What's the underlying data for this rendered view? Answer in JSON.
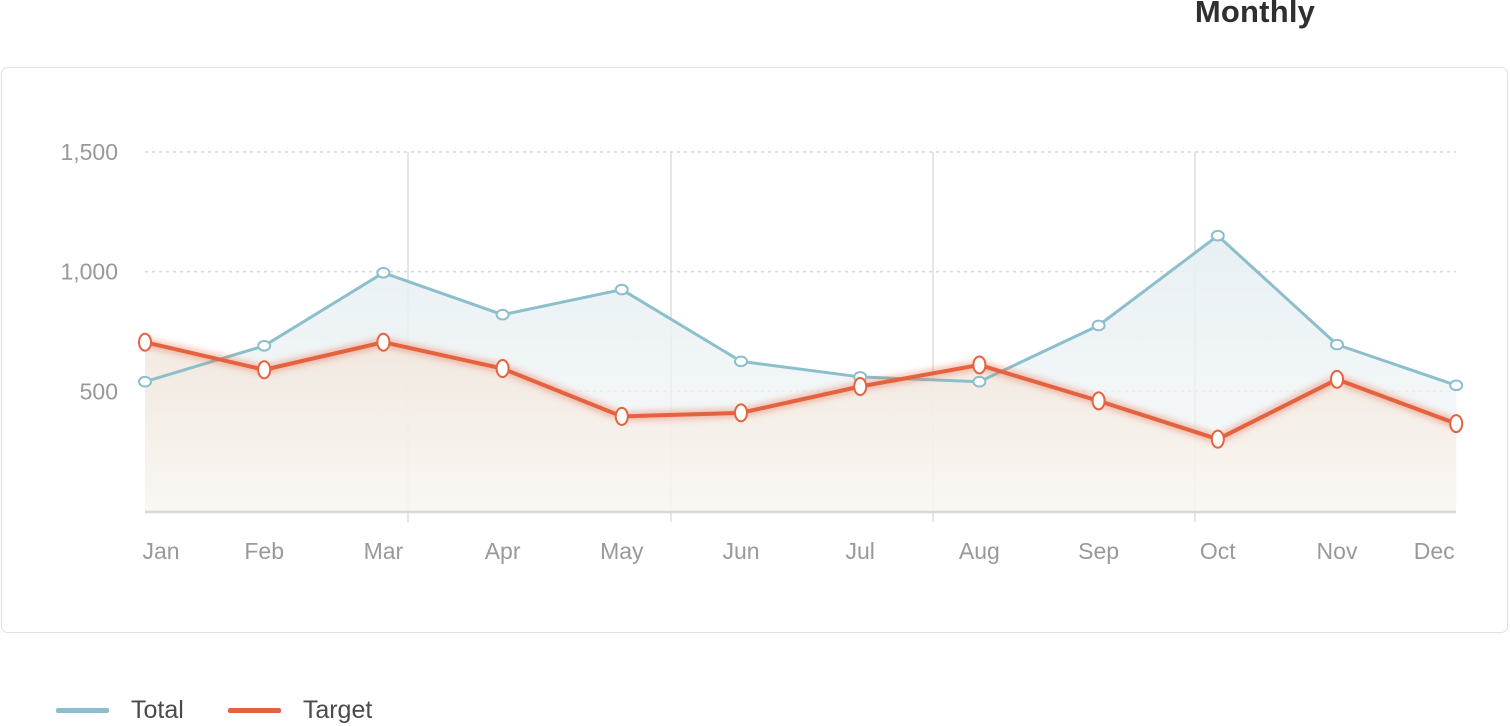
{
  "header": {
    "title": "Monthly"
  },
  "colors": {
    "total": "#8cbfcb",
    "target": "#e4623f",
    "axis_text": "#999999"
  },
  "legend": [
    {
      "label": "Total",
      "color": "#8cbfcb"
    },
    {
      "label": "Target",
      "color": "#e4623f"
    }
  ],
  "chart_data": {
    "type": "line",
    "title": "Monthly",
    "categories": [
      "Jan",
      "Feb",
      "Mar",
      "Apr",
      "May",
      "Jun",
      "Jul",
      "Aug",
      "Sep",
      "Oct",
      "Nov",
      "Dec"
    ],
    "series": [
      {
        "name": "Total",
        "values": [
          540,
          690,
          995,
          820,
          925,
          625,
          560,
          540,
          775,
          1150,
          695,
          525
        ]
      },
      {
        "name": "Target",
        "values": [
          705,
          590,
          705,
          595,
          395,
          410,
          520,
          610,
          460,
          300,
          550,
          365
        ]
      }
    ],
    "yticks": [
      "1,500",
      "1,000",
      "500"
    ],
    "ytick_values": [
      1500,
      1000,
      500
    ],
    "ylim": [
      0,
      1500
    ],
    "xlabel": "",
    "ylabel": "",
    "grid": true,
    "legend_position": "bottom-left"
  }
}
